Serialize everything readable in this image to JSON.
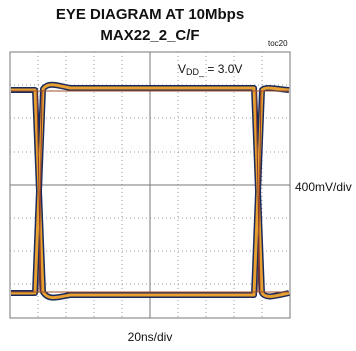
{
  "header": {
    "title": "EYE DIAGRAM AT 10Mbps",
    "subtitle": "MAX22_2_C/F",
    "figure_id": "toc20"
  },
  "annotations": {
    "supply": {
      "main": "V",
      "sub": "DD_",
      "rest": " = 3.0V"
    },
    "vertical_scale": "400mV/div",
    "horizontal_scale": "20ns/div"
  }
}
